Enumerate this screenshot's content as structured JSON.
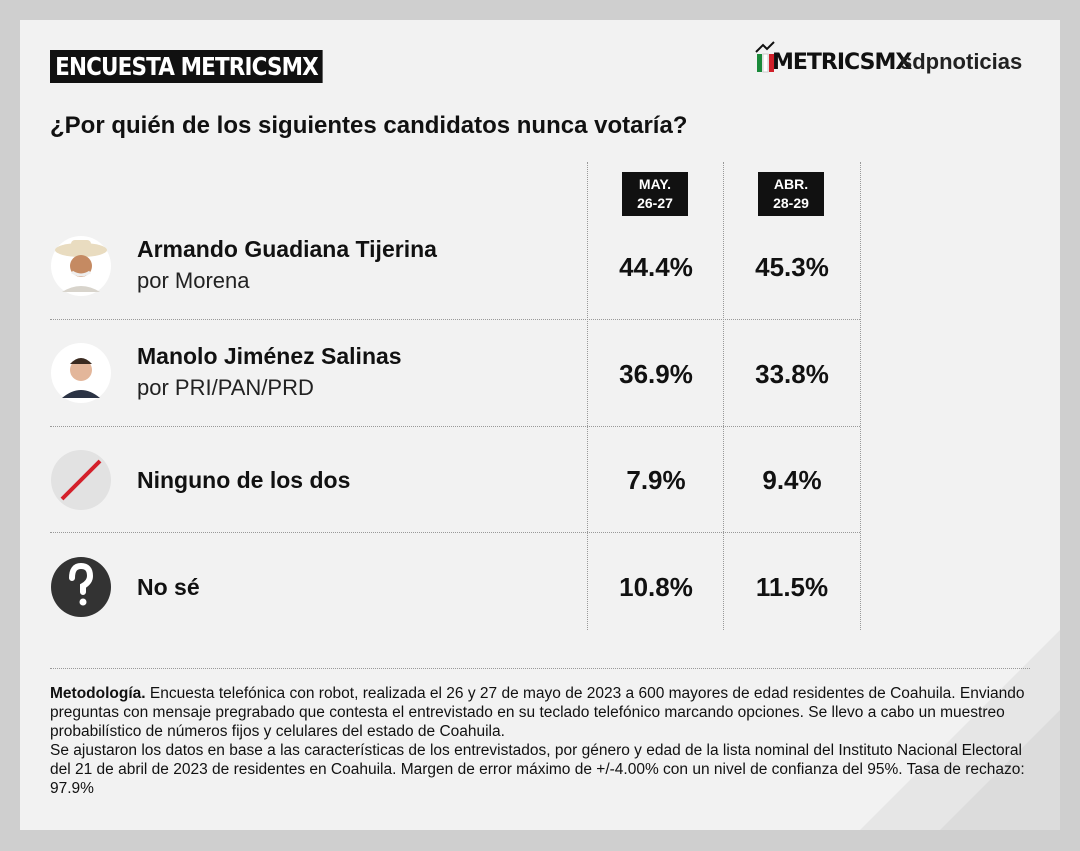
{
  "header": {
    "title": "ENCUESTA METRICSMX",
    "logo_left": "METRICSMX",
    "logo_right": "sdpnoticias"
  },
  "question": "¿Por quién de los siguientes candidatos nunca votaría?",
  "table": {
    "columns": [
      {
        "label": "MAY.",
        "dates": "26-27"
      },
      {
        "label": "ABR.",
        "dates": "28-29"
      }
    ],
    "rows": [
      {
        "name": "Armando Guadiana Tijerina",
        "party": "por Morena",
        "values": [
          "44.4%",
          "45.3%"
        ]
      },
      {
        "name": "Manolo Jiménez Salinas",
        "party": "por PRI/PAN/PRD",
        "values": [
          "36.9%",
          "33.8%"
        ]
      },
      {
        "name": "Ninguno de los dos",
        "values": [
          "7.9%",
          "9.4%"
        ]
      },
      {
        "name": "No sé",
        "values": [
          "10.8%",
          "11.5%"
        ]
      }
    ]
  },
  "methodology": {
    "label": "Metodología.",
    "paragraphs": [
      "Encuesta telefónica con robot, realizada el 26 y 27 de mayo de 2023 a 600 mayores de edad residentes de Coahuila. Enviando preguntas con mensaje pregrabado que contesta el entrevistado en su teclado telefónico marcando opciones. Se llevo a cabo un muestreo probabilístico de números fijos y celulares del estado de Coahuila.",
      "Se ajustaron los datos en base a las características de los entrevistados, por género y edad de la lista nominal del Instituto Nacional Electoral del 21 de abril de 2023 de residentes en Coahuila. Margen de error máximo de +/-4.00% con un nivel de confianza del 95%. Tasa de rechazo: 97.9%"
    ]
  }
}
